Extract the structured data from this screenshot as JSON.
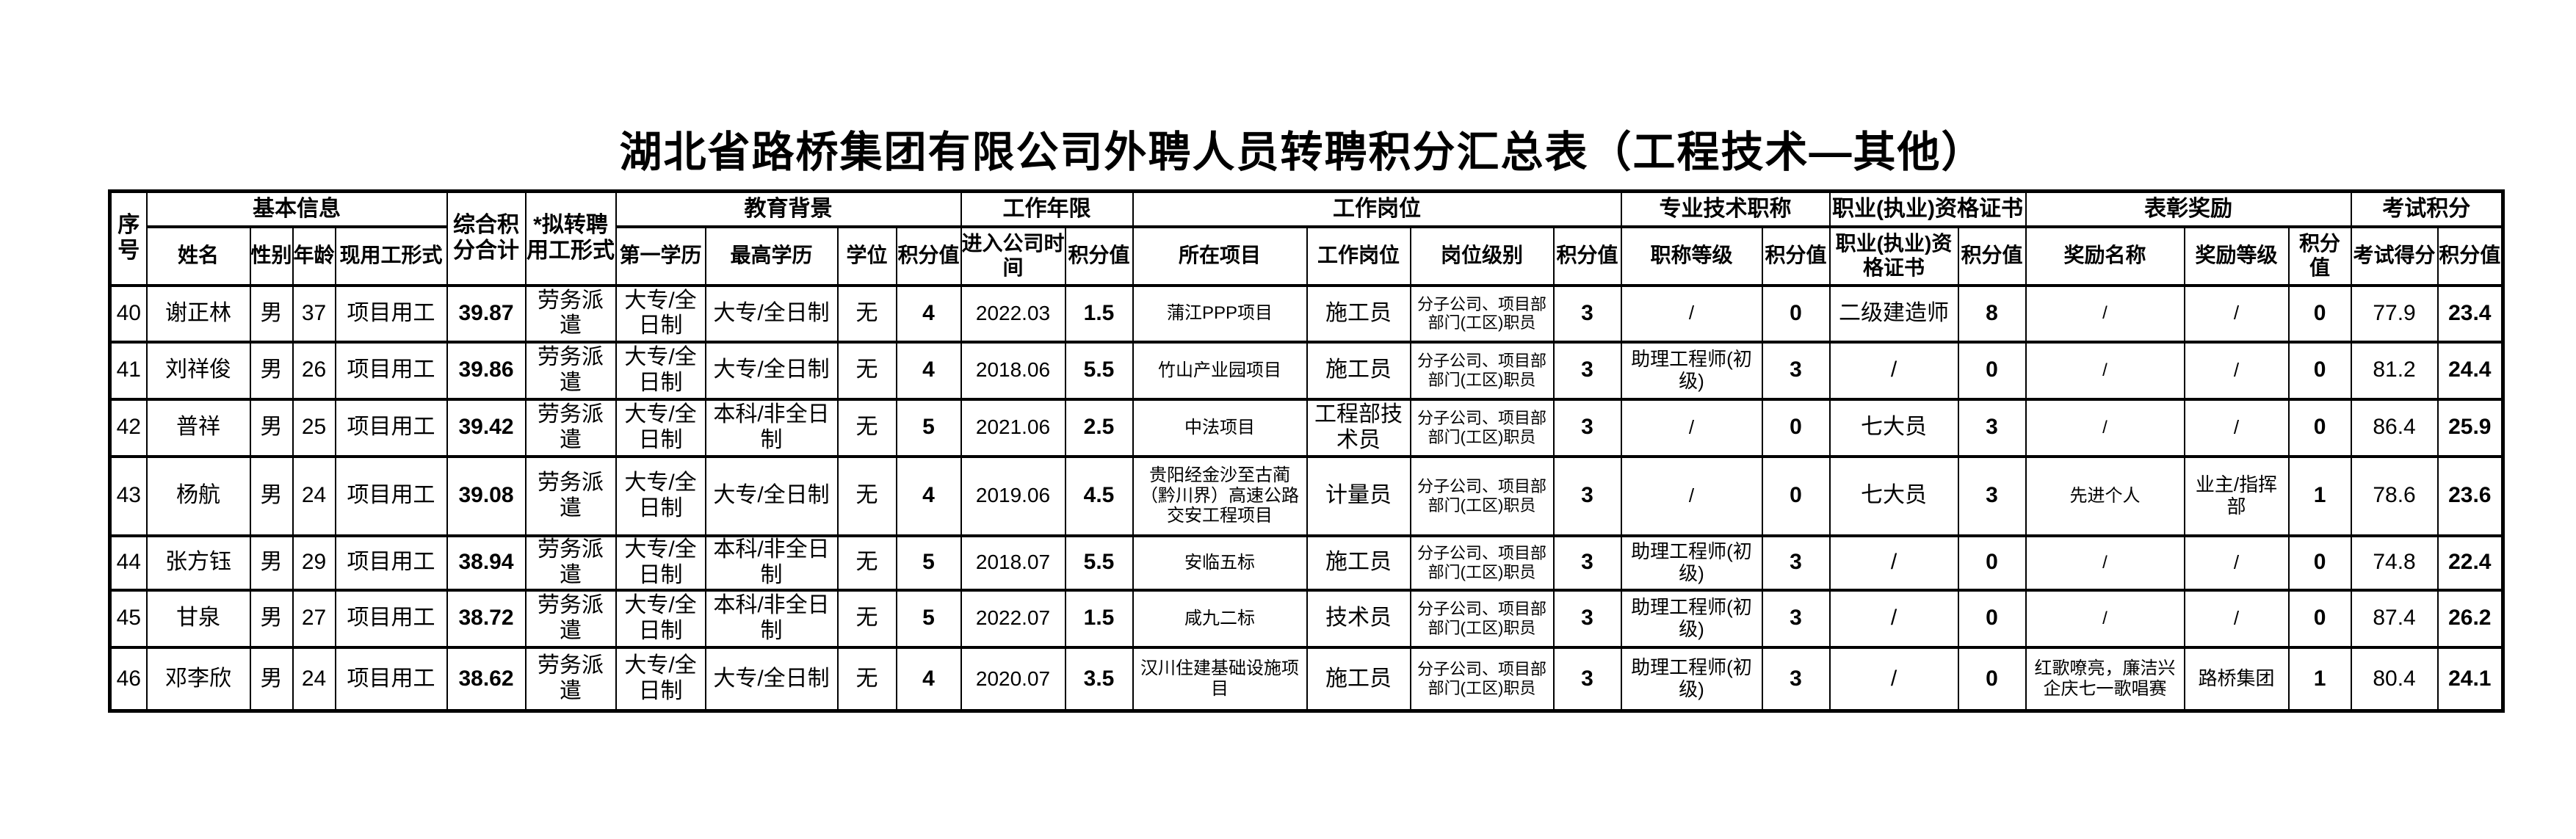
{
  "page": {
    "title": "湖北省路桥集团有限公司外聘人员转聘积分汇总表（工程技术—其他）"
  },
  "table": {
    "header": {
      "row1": [
        {
          "label": "序号"
        },
        {
          "label": "基本信息"
        },
        {
          "label": "综合积分合计"
        },
        {
          "label": "*拟转聘用工形式"
        },
        {
          "label": "教育背景"
        },
        {
          "label": "工作年限"
        },
        {
          "label": "工作岗位"
        },
        {
          "label": "专业技术职称"
        },
        {
          "label": "职业(执业)资格证书"
        },
        {
          "label": "表彰奖励"
        },
        {
          "label": "考试积分"
        }
      ],
      "row2": [
        "姓名",
        "性别",
        "年龄",
        "现用工形式",
        "第一学历",
        "最高学历",
        "学位",
        "积分值",
        "进入公司时间",
        "积分值",
        "所在项目",
        "工作岗位",
        "岗位级别",
        "积分值",
        "职称等级",
        "积分值",
        "职业(执业)资格证书",
        "积分值",
        "奖励名称",
        "奖励等级",
        "积分值",
        "考试得分",
        "积分值"
      ]
    },
    "rows": [
      [
        "40",
        "谢正林",
        "男",
        "37",
        "项目用工",
        "39.87",
        "劳务派遣",
        "大专/全日制",
        "大专/全日制",
        "无",
        "4",
        "2022.03",
        "1.5",
        "蒲江PPP项目",
        "施工员",
        "分子公司、项目部部门(工区)职员",
        "3",
        "/",
        "0",
        "二级建造师",
        "8",
        "/",
        "/",
        "0",
        "77.9",
        "23.4"
      ],
      [
        "41",
        "刘祥俊",
        "男",
        "26",
        "项目用工",
        "39.86",
        "劳务派遣",
        "大专/全日制",
        "大专/全日制",
        "无",
        "4",
        "2018.06",
        "5.5",
        "竹山产业园项目",
        "施工员",
        "分子公司、项目部部门(工区)职员",
        "3",
        "助理工程师(初级)",
        "3",
        "/",
        "0",
        "/",
        "/",
        "0",
        "81.2",
        "24.4"
      ],
      [
        "42",
        "普祥",
        "男",
        "25",
        "项目用工",
        "39.42",
        "劳务派遣",
        "大专/全日制",
        "本科/非全日制",
        "无",
        "5",
        "2021.06",
        "2.5",
        "中法项目",
        "工程部技术员",
        "分子公司、项目部部门(工区)职员",
        "3",
        "/",
        "0",
        "七大员",
        "3",
        "/",
        "/",
        "0",
        "86.4",
        "25.9"
      ],
      [
        "43",
        "杨航",
        "男",
        "24",
        "项目用工",
        "39.08",
        "劳务派遣",
        "大专/全日制",
        "大专/全日制",
        "无",
        "4",
        "2019.06",
        "4.5",
        "贵阳经金沙至古蔺（黔川界）高速公路交安工程项目",
        "计量员",
        "分子公司、项目部部门(工区)职员",
        "3",
        "/",
        "0",
        "七大员",
        "3",
        "先进个人",
        "业主/指挥部",
        "1",
        "78.6",
        "23.6"
      ],
      [
        "44",
        "张方钰",
        "男",
        "29",
        "项目用工",
        "38.94",
        "劳务派遣",
        "大专/全日制",
        "本科/非全日制",
        "无",
        "5",
        "2018.07",
        "5.5",
        "安临五标",
        "施工员",
        "分子公司、项目部部门(工区)职员",
        "3",
        "助理工程师(初级)",
        "3",
        "/",
        "0",
        "/",
        "/",
        "0",
        "74.8",
        "22.4"
      ],
      [
        "45",
        "甘泉",
        "男",
        "27",
        "项目用工",
        "38.72",
        "劳务派遣",
        "大专/全日制",
        "本科/非全日制",
        "无",
        "5",
        "2022.07",
        "1.5",
        "咸九二标",
        "技术员",
        "分子公司、项目部部门(工区)职员",
        "3",
        "助理工程师(初级)",
        "3",
        "/",
        "0",
        "/",
        "/",
        "0",
        "87.4",
        "26.2"
      ],
      [
        "46",
        "邓李欣",
        "男",
        "24",
        "项目用工",
        "38.62",
        "劳务派遣",
        "大专/全日制",
        "大专/全日制",
        "无",
        "4",
        "2020.07",
        "3.5",
        "汉川住建基础设施项目",
        "施工员",
        "分子公司、项目部部门(工区)职员",
        "3",
        "助理工程师(初级)",
        "3",
        "/",
        "0",
        "红歌嘹亮，廉洁兴企庆七一歌唱赛",
        "路桥集团",
        "1",
        "80.4",
        "24.1"
      ]
    ]
  }
}
